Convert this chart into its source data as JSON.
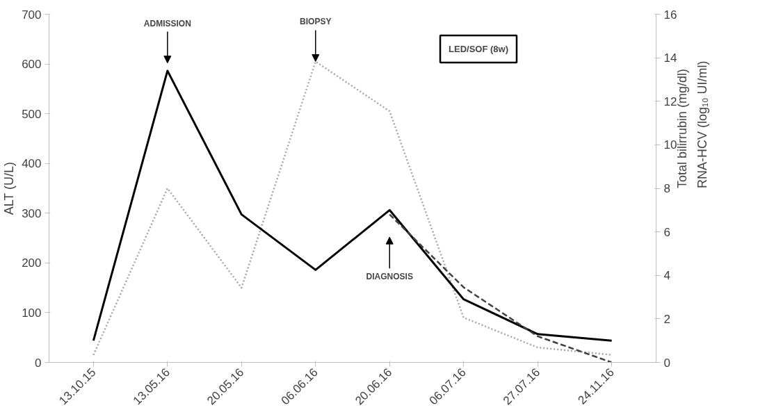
{
  "chart_data": {
    "type": "line",
    "categories": [
      "13.10.15",
      "13.05.16",
      "20.05.16",
      "06.06.16",
      "20.06.16",
      "06.07.16",
      "27.07.16",
      "24.11.16"
    ],
    "ylabel": "ALT (U/L)",
    "y2label": "Total bilirrubin (mg/dl)",
    "y3label": "RNA-HCV (log₁₀ UI/ml)",
    "ylim": [
      0,
      700
    ],
    "yticks": [
      0,
      100,
      200,
      300,
      400,
      500,
      600,
      700
    ],
    "y2lim": [
      0,
      16
    ],
    "y2ticks": [
      0,
      2,
      4,
      6,
      8,
      10,
      12,
      14,
      16
    ],
    "grid": false,
    "marker": "none",
    "series": [
      {
        "color": "#a6a6a6",
        "line_style": "dotted",
        "values": [
          15,
          350,
          150,
          605,
          505,
          90,
          30,
          15
        ]
      },
      {
        "color": "#000000",
        "line_style": "solid",
        "axis": "y2",
        "values": [
          1.0,
          13.4,
          6.8,
          4.25,
          7.0,
          2.9,
          1.3,
          1.0
        ]
      },
      {
        "color": "#404040",
        "line_style": "dashed",
        "axis": "y2",
        "values": [
          null,
          null,
          null,
          null,
          6.8,
          3.45,
          1.2,
          0
        ]
      }
    ],
    "annotations": [
      "ADMISSION",
      {
        "text": "BIOPSY",
        "x": "06.06.16",
        "y": 605
      },
      "DIAGNOSIS",
      "LED/SOF (8w)"
    ]
  }
}
